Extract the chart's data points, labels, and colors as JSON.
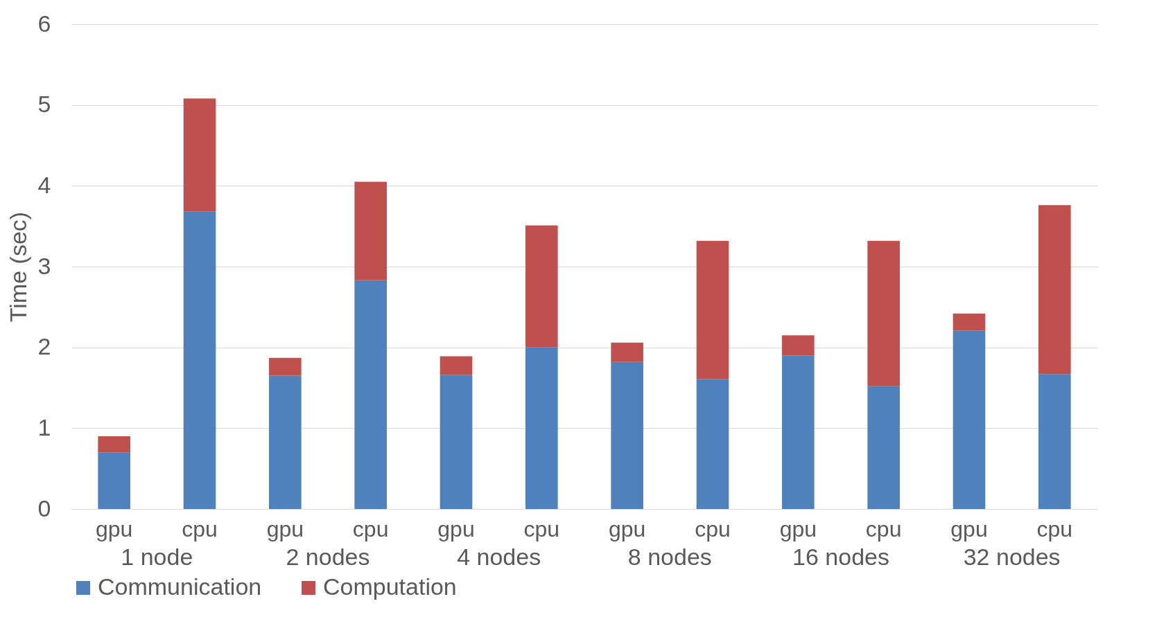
{
  "chart_data": {
    "type": "bar",
    "stacked": true,
    "ylabel": "Time (sec)",
    "categories": [
      "gpu",
      "cpu",
      "gpu",
      "cpu",
      "gpu",
      "cpu",
      "gpu",
      "cpu",
      "gpu",
      "cpu",
      "gpu",
      "cpu"
    ],
    "series": [
      {
        "name": "Communication",
        "color": "#4f81bd",
        "values": [
          0.7,
          3.68,
          1.65,
          2.83,
          1.66,
          2.0,
          1.82,
          1.61,
          1.9,
          1.52,
          2.21,
          1.67
        ]
      },
      {
        "name": "Computation",
        "color": "#c0504d",
        "values": [
          0.2,
          1.4,
          0.22,
          1.22,
          0.23,
          1.51,
          0.24,
          1.71,
          0.25,
          1.8,
          0.21,
          2.09
        ]
      }
    ],
    "annotations": [
      "1 node",
      "2 nodes",
      "4 nodes",
      "8 nodes",
      "16 nodes",
      "32 nodes"
    ],
    "ylim": [
      0,
      6
    ],
    "yticks": [
      0,
      1,
      2,
      3,
      4,
      5,
      6
    ],
    "grid": "y",
    "legend": "bottom"
  }
}
